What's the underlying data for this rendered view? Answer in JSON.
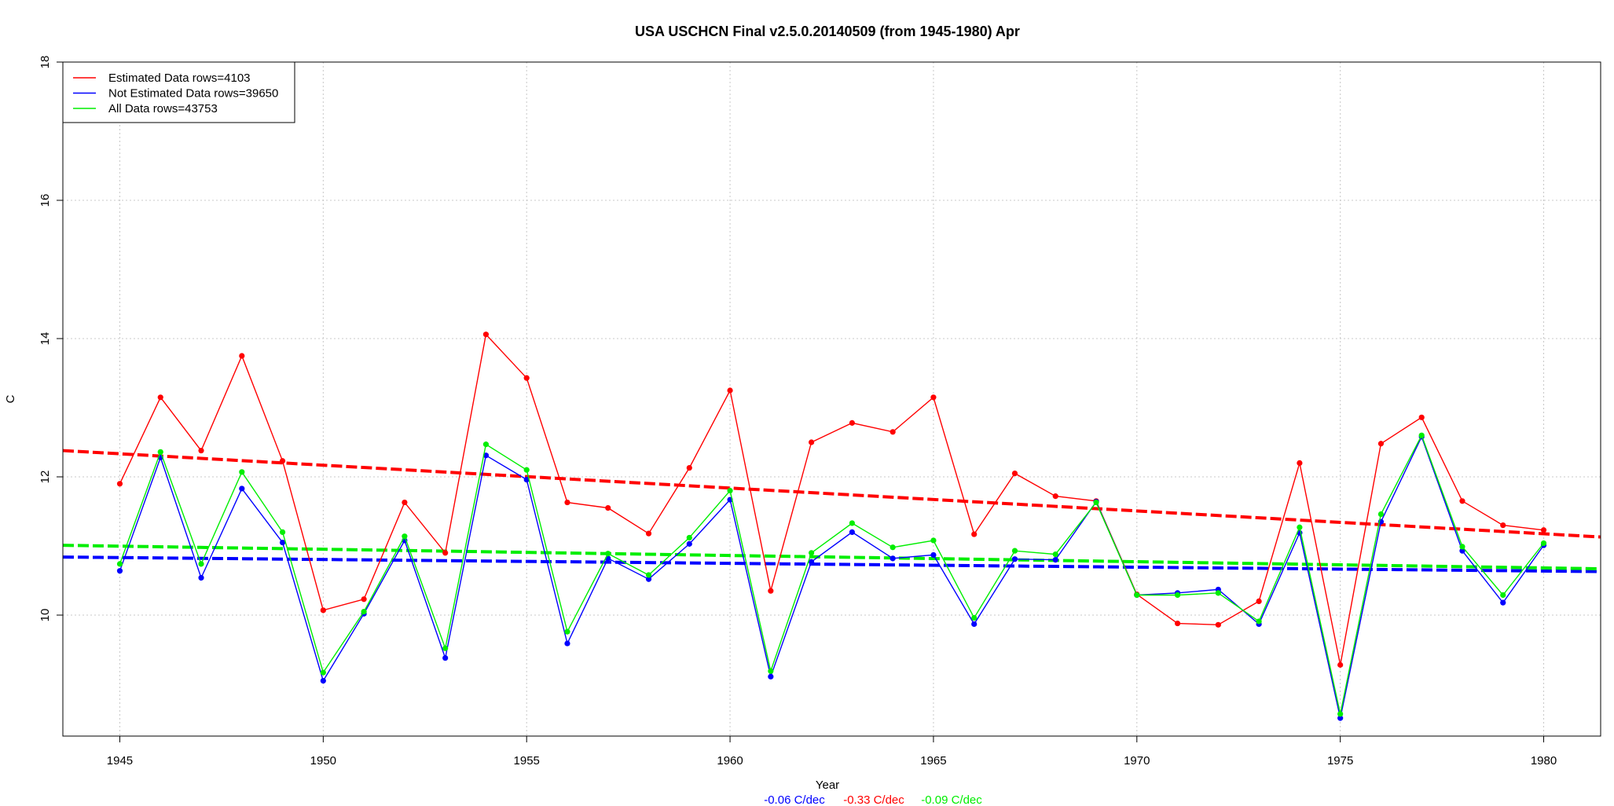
{
  "chart_data": {
    "type": "line",
    "title": "USA USCHCN Final v2.5.0.20140509 (from 1945-1980) Apr",
    "xlabel": "Year",
    "ylabel": "C",
    "xlim": [
      1943.6,
      1981.4
    ],
    "ylim": [
      8.25,
      18
    ],
    "x_ticks": [
      1945,
      1950,
      1955,
      1960,
      1965,
      1970,
      1975,
      1980
    ],
    "y_ticks": [
      10,
      12,
      14,
      16,
      18
    ],
    "grid": true,
    "legend_position": "top-left",
    "x": [
      1945,
      1946,
      1947,
      1948,
      1949,
      1950,
      1951,
      1952,
      1953,
      1954,
      1955,
      1956,
      1957,
      1958,
      1959,
      1960,
      1961,
      1962,
      1963,
      1964,
      1965,
      1966,
      1967,
      1968,
      1969,
      1970,
      1971,
      1972,
      1973,
      1974,
      1975,
      1976,
      1977,
      1978,
      1979,
      1980
    ],
    "series": [
      {
        "name": "Estimated Data rows=4103",
        "color": "#ff0000",
        "values": [
          11.9,
          13.15,
          12.38,
          13.75,
          12.23,
          10.07,
          10.23,
          11.63,
          10.9,
          14.06,
          13.43,
          11.63,
          11.55,
          11.18,
          12.13,
          13.25,
          10.35,
          12.5,
          12.78,
          12.65,
          13.15,
          11.17,
          12.05,
          11.72,
          11.65,
          10.3,
          9.88,
          9.86,
          10.2,
          12.2,
          9.28,
          12.48,
          12.86,
          11.65,
          11.3,
          11.23
        ]
      },
      {
        "name": "Not Estimated Data rows=39650",
        "color": "#0000ff",
        "values": [
          10.64,
          12.28,
          10.54,
          11.83,
          11.05,
          9.05,
          10.02,
          11.08,
          9.38,
          12.31,
          11.96,
          9.59,
          10.82,
          10.52,
          11.03,
          11.67,
          9.11,
          10.77,
          11.2,
          10.82,
          10.87,
          9.87,
          10.81,
          10.8,
          11.64,
          10.29,
          10.32,
          10.37,
          9.87,
          11.19,
          8.51,
          11.35,
          12.58,
          10.93,
          10.18,
          11.01
        ]
      },
      {
        "name": "All Data rows=43753",
        "color": "#00ee00",
        "values": [
          10.74,
          12.36,
          10.74,
          12.07,
          11.2,
          9.17,
          10.05,
          11.14,
          9.52,
          12.47,
          12.1,
          9.76,
          10.89,
          10.58,
          11.12,
          11.8,
          9.19,
          10.9,
          11.33,
          10.98,
          11.08,
          9.96,
          10.93,
          10.88,
          11.63,
          10.29,
          10.29,
          10.32,
          9.91,
          11.27,
          8.57,
          11.46,
          12.6,
          10.99,
          10.29,
          11.04
        ]
      }
    ],
    "trend_lines": [
      {
        "series": "Estimated Data rows=4103",
        "color": "#ff0000",
        "x": [
          1943.6,
          1981.4
        ],
        "y": [
          12.38,
          11.13
        ]
      },
      {
        "series": "Not Estimated Data rows=39650",
        "color": "#0000ff",
        "x": [
          1943.6,
          1981.4
        ],
        "y": [
          10.84,
          10.63
        ]
      },
      {
        "series": "All Data rows=43753",
        "color": "#00ee00",
        "x": [
          1943.6,
          1981.4
        ],
        "y": [
          11.01,
          10.67
        ]
      }
    ],
    "trend_labels": [
      {
        "text": "-0.06 C/dec",
        "color": "#0000ff"
      },
      {
        "text": "-0.33 C/dec",
        "color": "#ff0000"
      },
      {
        "text": "-0.09 C/dec",
        "color": "#00ee00"
      }
    ]
  }
}
